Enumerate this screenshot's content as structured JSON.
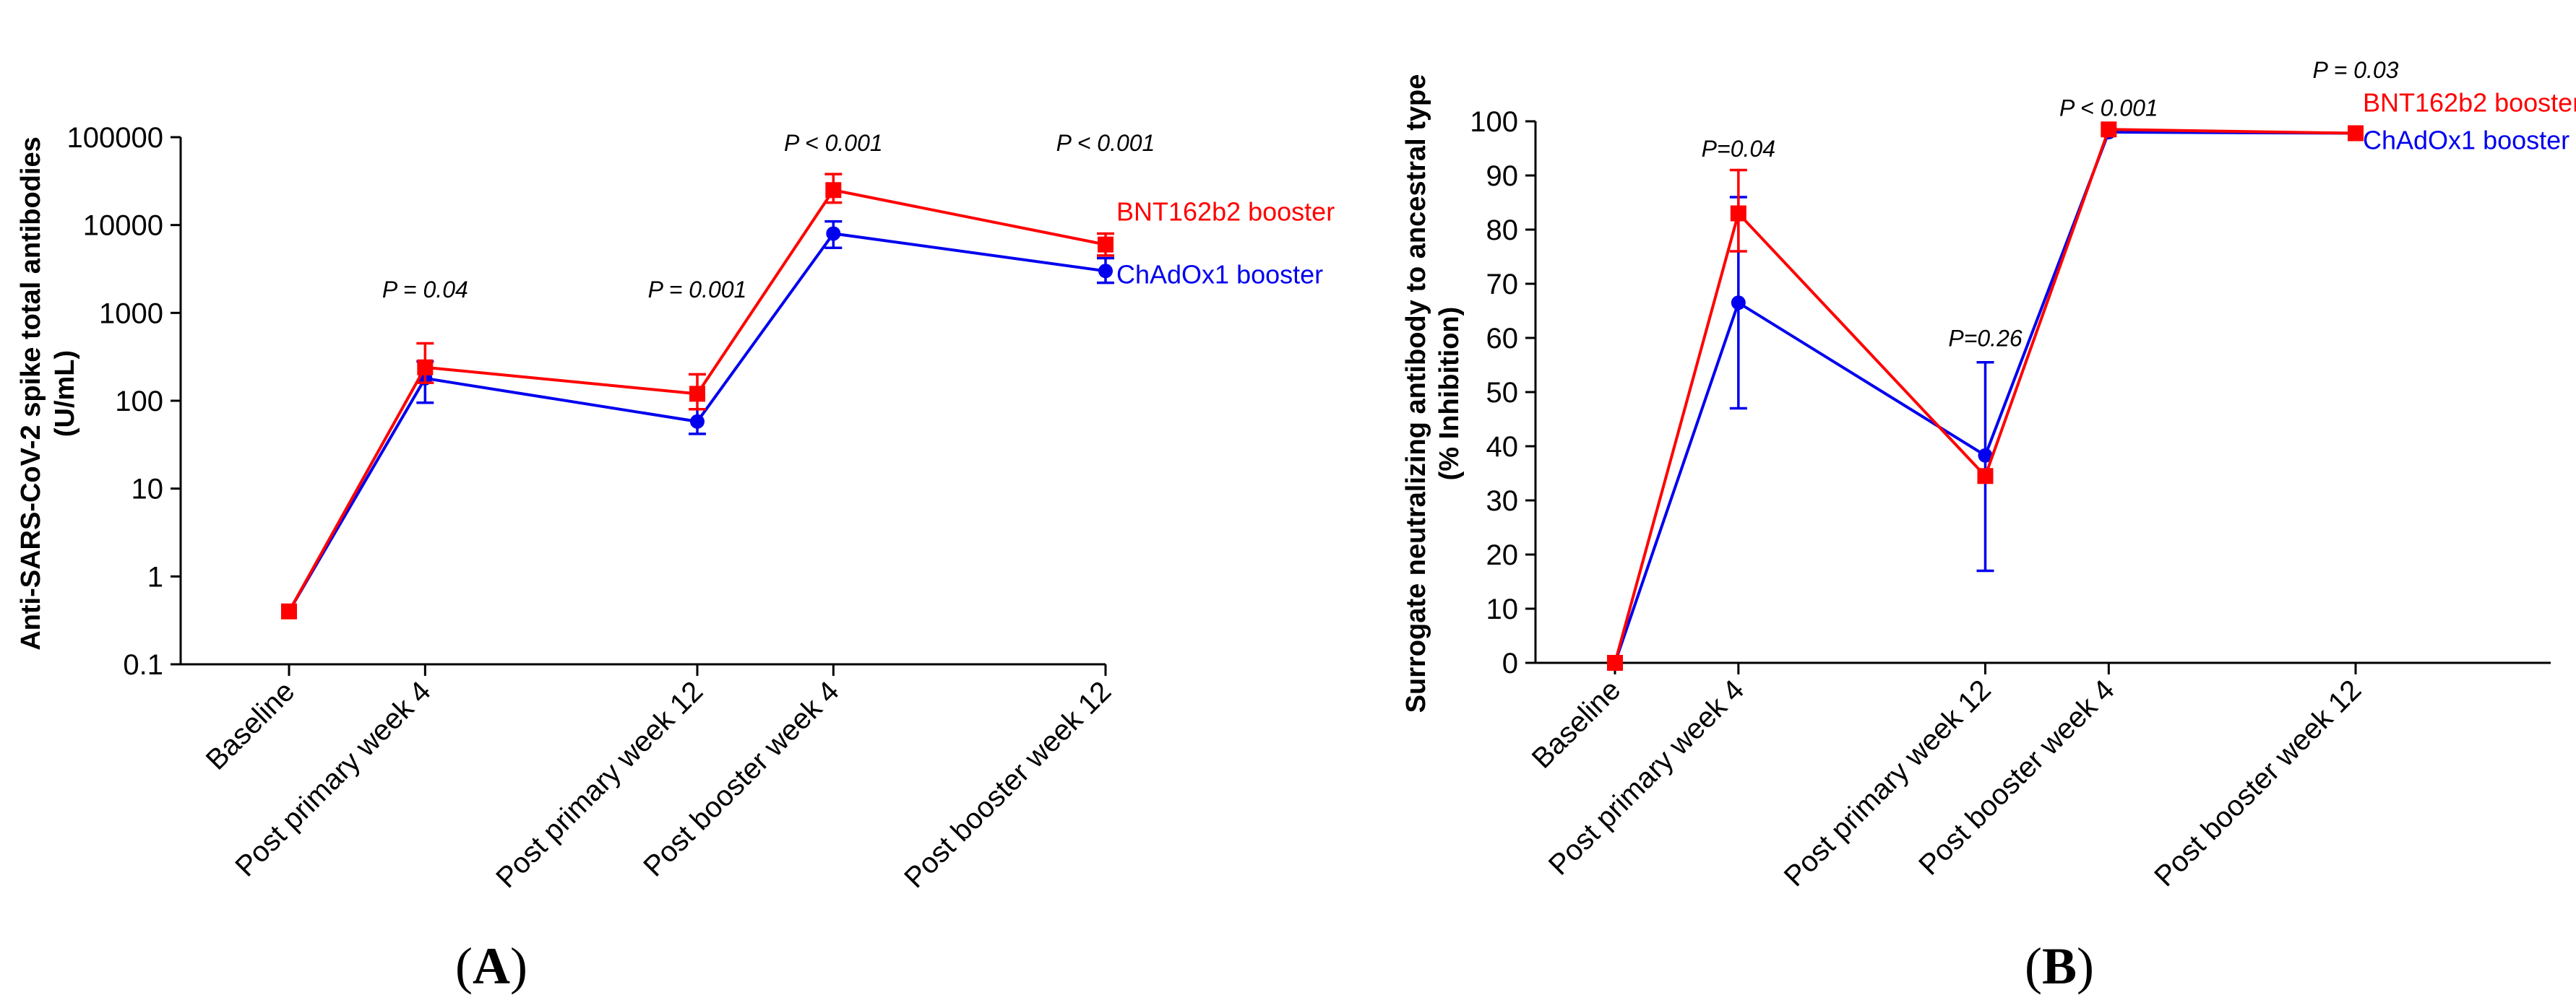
{
  "chart_data": [
    {
      "type": "line",
      "panel": "(A)",
      "panel_prefix": "(",
      "panel_letter": "A",
      "panel_suffix": ")",
      "ylabel_line1": "Anti-SARS-CoV-2 spike total antibodies",
      "ylabel_line2": "(U/mL)",
      "yscale": "log",
      "ylim": [
        0.1,
        100000
      ],
      "yticks": [
        0.1,
        1,
        10,
        100,
        1000,
        10000,
        100000
      ],
      "yticklabels": [
        "0.1",
        "1",
        "10",
        "100",
        "1000",
        "10000",
        "100000"
      ],
      "categories": [
        "Baseline",
        "Post primary week 4",
        "Post primary week 12",
        "Post booster week 4",
        "Post booster week 12"
      ],
      "x_weeks": [
        0,
        4,
        12,
        16,
        24
      ],
      "series": [
        {
          "name": "BNT162b2 booster",
          "color": "#ff0000",
          "marker": "square",
          "values": [
            0.4,
            240,
            120,
            25000,
            6000
          ],
          "err_low": [
            0.4,
            160,
            80,
            18000,
            4500
          ],
          "err_high": [
            0.4,
            450,
            200,
            38000,
            8000
          ]
        },
        {
          "name": "ChAdOx1 booster",
          "color": "#0000ee",
          "marker": "circle",
          "values": [
            0.4,
            180,
            58,
            8000,
            3000
          ],
          "err_low": [
            0.4,
            95,
            42,
            5500,
            2200
          ],
          "err_high": [
            0.4,
            280,
            80,
            11000,
            4200
          ]
        }
      ],
      "annotations": [
        {
          "text": "P = 0.04",
          "category_index": 1,
          "y": 1500
        },
        {
          "text": "P = 0.001",
          "category_index": 2,
          "y": 1500
        },
        {
          "text": "P < 0.001",
          "category_index": 3,
          "y": 70000
        },
        {
          "text": "P < 0.001",
          "category_index": 4,
          "y": 70000
        }
      ]
    },
    {
      "type": "line",
      "panel": "(B)",
      "panel_prefix": "(",
      "panel_letter": "B",
      "panel_suffix": ")",
      "ylabel_line1": "Surrogate neutralizing antibody to ancestral type",
      "ylabel_line2": "(% Inhibition)",
      "yscale": "linear",
      "ylim": [
        0,
        100
      ],
      "yticks": [
        0,
        10,
        20,
        30,
        40,
        50,
        60,
        70,
        80,
        90,
        100
      ],
      "yticklabels": [
        "0",
        "10",
        "20",
        "30",
        "40",
        "50",
        "60",
        "70",
        "80",
        "90",
        "100"
      ],
      "categories": [
        "Baseline",
        "Post primary week 4",
        "Post primary week 12",
        "Post booster week 4",
        "Post booster week 12"
      ],
      "x_weeks": [
        0,
        4,
        12,
        16,
        24
      ],
      "series": [
        {
          "name": "BNT162b2 booster",
          "color": "#ff0000",
          "marker": "square",
          "values": [
            0,
            83,
            34.5,
            98.5,
            97.8
          ],
          "err_low": [
            0,
            76,
            34.5,
            98.5,
            97.8
          ],
          "err_high": [
            0,
            91,
            34.5,
            98.5,
            97.8
          ]
        },
        {
          "name": "ChAdOx1 booster",
          "color": "#0000ee",
          "marker": "circle",
          "values": [
            0,
            66.5,
            38.3,
            98,
            97.8
          ],
          "err_low": [
            0,
            47,
            17,
            98,
            97.8
          ],
          "err_high": [
            0,
            86,
            55.5,
            98,
            97.8
          ]
        }
      ],
      "annotations": [
        {
          "text": "P=0.04",
          "category_index": 1,
          "y": 93.5
        },
        {
          "text": "P=0.26",
          "category_index": 2,
          "y": 58.5
        },
        {
          "text": "P < 0.001",
          "category_index": 3,
          "y": 101
        },
        {
          "text": "P = 0.03",
          "category_index": 4,
          "y": 108
        }
      ]
    }
  ]
}
